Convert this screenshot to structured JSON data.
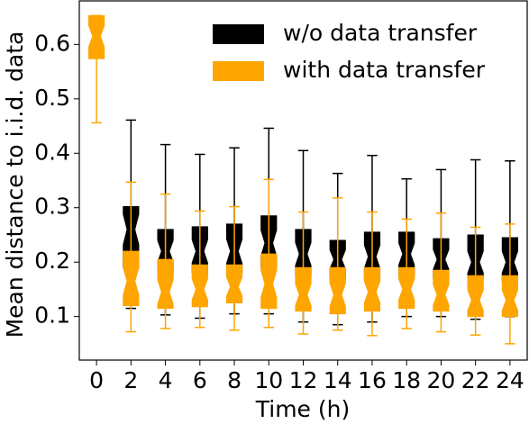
{
  "chart_data": {
    "type": "boxplot",
    "xlabel": "Time (h)",
    "ylabel": "Mean distance to i.i.d. data",
    "xlim": [
      -1,
      25
    ],
    "xticks": [
      0,
      2,
      4,
      6,
      8,
      10,
      12,
      14,
      16,
      18,
      20,
      22,
      24
    ],
    "ylim": [
      0.02,
      0.68
    ],
    "yticks": [
      0.1,
      0.2,
      0.3,
      0.4,
      0.5,
      0.6
    ],
    "legend": "upper right",
    "series": [
      {
        "name": "w/o data transfer",
        "color": "#000000",
        "x": [
          2,
          4,
          6,
          8,
          10,
          12,
          14,
          16,
          18,
          20,
          22,
          24
        ],
        "whislo": [
          0.115,
          0.103,
          0.097,
          0.105,
          0.105,
          0.09,
          0.085,
          0.09,
          0.1,
          0.1,
          0.095,
          0.1
        ],
        "q1": [
          0.19,
          0.18,
          0.18,
          0.18,
          0.19,
          0.175,
          0.17,
          0.17,
          0.175,
          0.17,
          0.17,
          0.165
        ],
        "med": [
          0.26,
          0.22,
          0.22,
          0.22,
          0.235,
          0.215,
          0.205,
          0.21,
          0.215,
          0.205,
          0.2,
          0.2
        ],
        "q3": [
          0.302,
          0.26,
          0.265,
          0.27,
          0.285,
          0.26,
          0.24,
          0.255,
          0.255,
          0.243,
          0.25,
          0.245
        ],
        "whishi": [
          0.461,
          0.416,
          0.398,
          0.41,
          0.446,
          0.405,
          0.363,
          0.396,
          0.353,
          0.37,
          0.388,
          0.386
        ]
      },
      {
        "name": "with data transfer",
        "color": "#ffa500",
        "x": [
          0,
          2,
          4,
          6,
          8,
          10,
          12,
          14,
          16,
          18,
          20,
          22,
          24
        ],
        "whislo": [
          0.456,
          0.072,
          0.078,
          0.08,
          0.075,
          0.08,
          0.068,
          0.075,
          0.065,
          0.078,
          0.072,
          0.066,
          0.05
        ],
        "q1": [
          0.574,
          0.12,
          0.115,
          0.118,
          0.125,
          0.115,
          0.11,
          0.105,
          0.11,
          0.115,
          0.11,
          0.1,
          0.1
        ],
        "med": [
          0.615,
          0.165,
          0.145,
          0.15,
          0.155,
          0.16,
          0.14,
          0.14,
          0.145,
          0.15,
          0.14,
          0.13,
          0.13
        ],
        "q3": [
          0.653,
          0.22,
          0.205,
          0.195,
          0.195,
          0.215,
          0.19,
          0.19,
          0.19,
          0.19,
          0.185,
          0.175,
          0.175
        ],
        "whishi": [
          0.653,
          0.347,
          0.325,
          0.294,
          0.302,
          0.352,
          0.292,
          0.318,
          0.292,
          0.279,
          0.29,
          0.264,
          0.27
        ]
      }
    ]
  }
}
